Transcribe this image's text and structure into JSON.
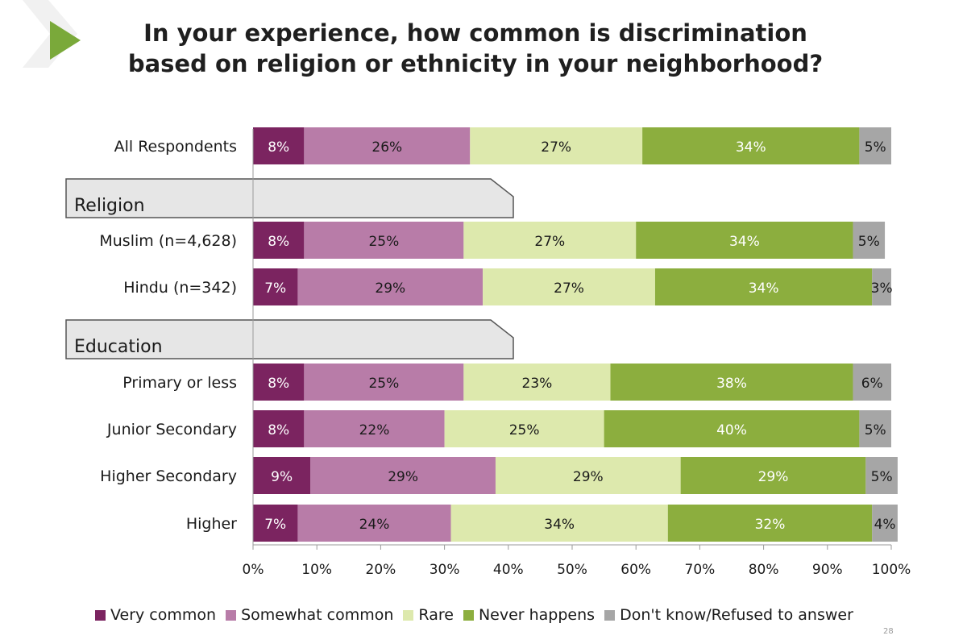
{
  "title": {
    "line1": "In your experience, how common is discrimination",
    "line2": "based on religion or ethnicity in your neighborhood?"
  },
  "page_number": "28",
  "colors": {
    "very_common": "#7b2460",
    "somewhat_common": "#b87ca8",
    "rare": "#dde9ad",
    "never_happens": "#8cae3e",
    "dont_know": "#a6a6a6",
    "section_tab_fill": "#e6e6e6",
    "section_tab_stroke": "#555555",
    "arrow": "#7aa93a"
  },
  "chart_data": {
    "type": "bar",
    "orientation": "horizontal",
    "stacked": true,
    "xlim": [
      0,
      100
    ],
    "xticks": [
      "0%",
      "10%",
      "20%",
      "30%",
      "40%",
      "50%",
      "60%",
      "70%",
      "80%",
      "90%",
      "100%"
    ],
    "grid": false,
    "legend_position": "bottom",
    "series": [
      {
        "name": "Very common",
        "color_key": "very_common"
      },
      {
        "name": "Somewhat common",
        "color_key": "somewhat_common"
      },
      {
        "name": "Rare",
        "color_key": "rare"
      },
      {
        "name": "Never happens",
        "color_key": "never_happens"
      },
      {
        "name": "Don't know/Refused to answer",
        "color_key": "dont_know"
      }
    ],
    "rows": [
      {
        "kind": "bar",
        "label": "All Respondents",
        "values": [
          8,
          26,
          27,
          34,
          5
        ],
        "value_labels": [
          "8%",
          "26%",
          "27%",
          "34%",
          "5%"
        ]
      },
      {
        "kind": "section",
        "label": "Religion"
      },
      {
        "kind": "bar",
        "label": "Muslim (n=4,628)",
        "values": [
          8,
          25,
          27,
          34,
          5
        ],
        "value_labels": [
          "8%",
          "25%",
          "27%",
          "34%",
          "5%"
        ]
      },
      {
        "kind": "bar",
        "label": "Hindu (n=342)",
        "values": [
          7,
          29,
          27,
          34,
          3
        ],
        "value_labels": [
          "7%",
          "29%",
          "27%",
          "34%",
          "3%"
        ]
      },
      {
        "kind": "section",
        "label": "Education"
      },
      {
        "kind": "bar",
        "label": "Primary or less",
        "values": [
          8,
          25,
          23,
          38,
          6
        ],
        "value_labels": [
          "8%",
          "25%",
          "23%",
          "38%",
          "6%"
        ]
      },
      {
        "kind": "bar",
        "label": "Junior Secondary",
        "values": [
          8,
          22,
          25,
          40,
          5
        ],
        "value_labels": [
          "8%",
          "22%",
          "25%",
          "40%",
          "5%"
        ]
      },
      {
        "kind": "bar",
        "label": "Higher Secondary",
        "values": [
          9,
          29,
          29,
          29,
          5
        ],
        "value_labels": [
          "9%",
          "29%",
          "29%",
          "29%",
          "5%"
        ]
      },
      {
        "kind": "bar",
        "label": "Higher",
        "values": [
          7,
          24,
          34,
          32,
          4
        ],
        "value_labels": [
          "7%",
          "24%",
          "34%",
          "32%",
          "4%"
        ]
      }
    ]
  }
}
